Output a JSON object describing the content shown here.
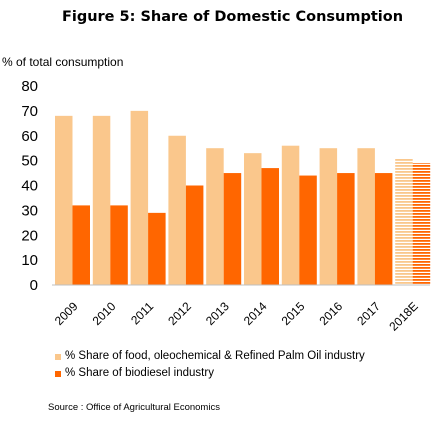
{
  "title": "Figure 5: Share of Domestic Consumption",
  "source": "Source : Office of Agricultural Economics",
  "chart_data": {
    "type": "bar",
    "ylabel": "% of total consumption",
    "xlabel": "",
    "ylim": [
      0,
      80
    ],
    "yticks": [
      0,
      10,
      20,
      30,
      40,
      50,
      60,
      70,
      80
    ],
    "grid": false,
    "legend_position": "bottom",
    "categories": [
      "2009",
      "2010",
      "2011",
      "2012",
      "2013",
      "2014",
      "2015",
      "2016",
      "2017",
      "2018E"
    ],
    "series": [
      {
        "name": "% Share of food, oleochemical & Refined Palm Oil industry",
        "color": "#FAC78C",
        "values": [
          68,
          68,
          70,
          60,
          55,
          53,
          56,
          55,
          55,
          51
        ]
      },
      {
        "name": "% Share of biodiesel industry",
        "color": "#FF6600",
        "values": [
          32,
          32,
          29,
          40,
          45,
          47,
          44,
          45,
          45,
          49
        ]
      }
    ],
    "estimated_category": "2018E"
  }
}
